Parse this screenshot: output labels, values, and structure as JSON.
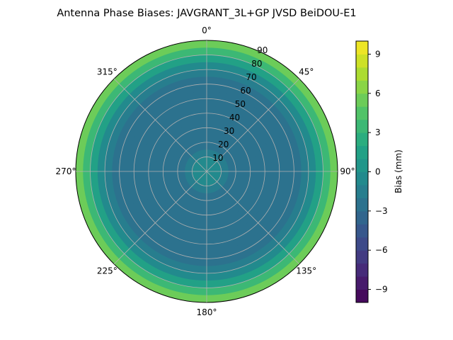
{
  "chart_data": {
    "type": "heatmap",
    "projection": "polar",
    "title": "Antenna Phase Biases: JAVGRANT_3L+GP  JVSD BeiDOU-E1",
    "theta_direction": "clockwise",
    "theta_zero": "north",
    "theta_tick_labels": [
      "0°",
      "45°",
      "90°",
      "135°",
      "180°",
      "225°",
      "270°",
      "315°"
    ],
    "theta_ticks": [
      0,
      45,
      90,
      135,
      180,
      225,
      270,
      315
    ],
    "r_ticks": [
      10,
      20,
      30,
      40,
      50,
      60,
      70,
      80,
      90
    ],
    "r_tick_labels": [
      "10",
      "20",
      "30",
      "40",
      "50",
      "60",
      "70",
      "80",
      "90"
    ],
    "rlim": [
      0,
      90
    ],
    "grid": true,
    "ring_zenith_edges": [
      0,
      5,
      10,
      15,
      20,
      25,
      30,
      35,
      40,
      45,
      50,
      55,
      60,
      65,
      70,
      75,
      80,
      85,
      90
    ],
    "ring_values": [
      -1,
      -1,
      -2,
      -3,
      -3,
      -3,
      -3,
      -3,
      -3,
      -3,
      -3,
      -3,
      -3,
      -2,
      -1,
      1,
      3,
      5
    ],
    "colorbar": {
      "label": "Bias (mm)",
      "range": [
        -10,
        10
      ],
      "levels_step": 1,
      "ticks": [
        -9,
        -6,
        -3,
        0,
        3,
        6,
        9
      ],
      "tick_labels": [
        "−9",
        "−6",
        "−3",
        "0",
        "3",
        "6",
        "9"
      ],
      "colormap": "viridis"
    }
  }
}
